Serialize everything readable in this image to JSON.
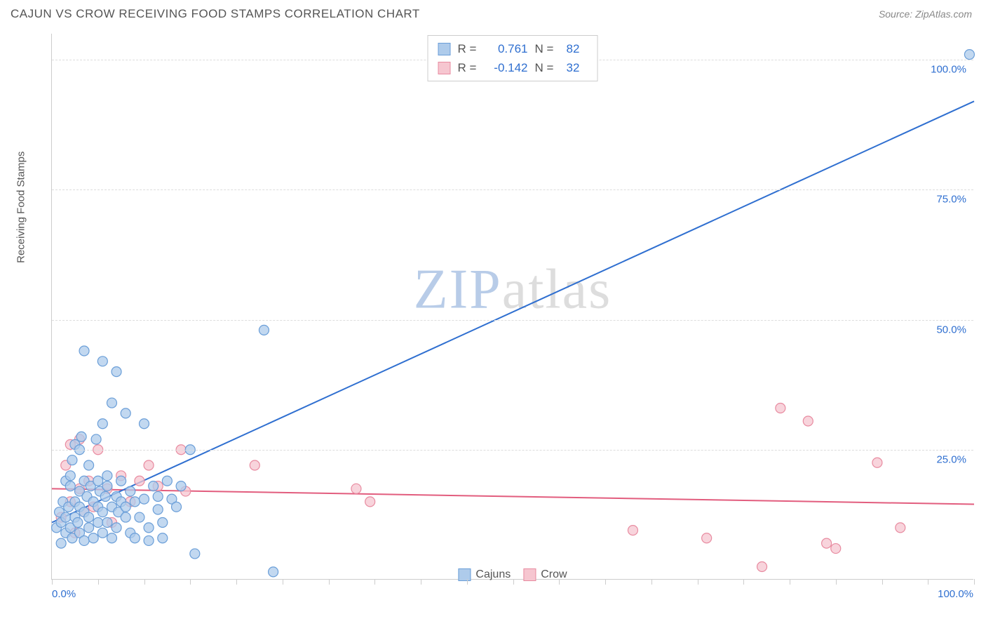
{
  "header": {
    "title": "CAJUN VS CROW RECEIVING FOOD STAMPS CORRELATION CHART",
    "source": "Source: ZipAtlas.com"
  },
  "watermark": {
    "part1": "ZIP",
    "part2": "atlas"
  },
  "chart": {
    "type": "scatter",
    "ylabel": "Receiving Food Stamps",
    "xlim": [
      0,
      100
    ],
    "ylim": [
      0,
      105
    ],
    "yticks": [
      {
        "v": 25,
        "label": "25.0%"
      },
      {
        "v": 50,
        "label": "50.0%"
      },
      {
        "v": 75,
        "label": "75.0%"
      },
      {
        "v": 100,
        "label": "100.0%"
      }
    ],
    "xtick_positions": [
      0,
      5,
      10,
      15,
      20,
      25,
      30,
      35,
      40,
      45,
      50,
      55,
      60,
      65,
      70,
      75,
      80,
      85,
      90,
      95,
      100
    ],
    "xtick_labels": {
      "left": "0.0%",
      "right": "100.0%"
    },
    "grid_color": "#dddddd",
    "axis_color": "#cccccc",
    "marker_radius": 7,
    "marker_stroke_width": 1.2,
    "line_width": 2,
    "series": [
      {
        "name": "Cajuns",
        "fill": "#aecbeb",
        "stroke": "#6a9ed8",
        "line_color": "#2f6fd0",
        "R": "0.761",
        "N": "82",
        "value_color": "#2f6fd0",
        "trend": {
          "x1": 0,
          "y1": 11,
          "x2": 100,
          "y2": 92
        },
        "points": [
          [
            0.5,
            10
          ],
          [
            0.8,
            13
          ],
          [
            1,
            11
          ],
          [
            1,
            7
          ],
          [
            1.2,
            15
          ],
          [
            1.5,
            12
          ],
          [
            1.5,
            19
          ],
          [
            1.5,
            9
          ],
          [
            1.8,
            14
          ],
          [
            2,
            10
          ],
          [
            2,
            18
          ],
          [
            2,
            20
          ],
          [
            2.2,
            8
          ],
          [
            2.2,
            23
          ],
          [
            2.5,
            12
          ],
          [
            2.5,
            26
          ],
          [
            2.5,
            15
          ],
          [
            2.8,
            11
          ],
          [
            3,
            14
          ],
          [
            3,
            17
          ],
          [
            3,
            9
          ],
          [
            3,
            25
          ],
          [
            3.2,
            27.5
          ],
          [
            3.5,
            13
          ],
          [
            3.5,
            19
          ],
          [
            3.5,
            7.5
          ],
          [
            3.5,
            44
          ],
          [
            3.8,
            16
          ],
          [
            4,
            12
          ],
          [
            4,
            10
          ],
          [
            4,
            22
          ],
          [
            4.2,
            18
          ],
          [
            4.5,
            15
          ],
          [
            4.5,
            8
          ],
          [
            4.8,
            27
          ],
          [
            5,
            14
          ],
          [
            5,
            19
          ],
          [
            5,
            11
          ],
          [
            5.2,
            17
          ],
          [
            5.5,
            13
          ],
          [
            5.5,
            9
          ],
          [
            5.5,
            30
          ],
          [
            5.5,
            42
          ],
          [
            5.8,
            16
          ],
          [
            6,
            18
          ],
          [
            6,
            20
          ],
          [
            6,
            11
          ],
          [
            6.5,
            14
          ],
          [
            6.5,
            8
          ],
          [
            6.5,
            34
          ],
          [
            7,
            16
          ],
          [
            7,
            10
          ],
          [
            7,
            40
          ],
          [
            7.2,
            13
          ],
          [
            7.5,
            15
          ],
          [
            7.5,
            19
          ],
          [
            8,
            32
          ],
          [
            8,
            12
          ],
          [
            8,
            14
          ],
          [
            8.5,
            17
          ],
          [
            8.5,
            9
          ],
          [
            9,
            15
          ],
          [
            9,
            8
          ],
          [
            9.5,
            12
          ],
          [
            10,
            15.5
          ],
          [
            10,
            30
          ],
          [
            10.5,
            10
          ],
          [
            10.5,
            7.5
          ],
          [
            11,
            18
          ],
          [
            11.5,
            13.5
          ],
          [
            11.5,
            16
          ],
          [
            12,
            8
          ],
          [
            12,
            11
          ],
          [
            12.5,
            19
          ],
          [
            13,
            15.5
          ],
          [
            13.5,
            14
          ],
          [
            14,
            18
          ],
          [
            15,
            25
          ],
          [
            15.5,
            5
          ],
          [
            23,
            48
          ],
          [
            24,
            1.5
          ],
          [
            99.5,
            101
          ]
        ]
      },
      {
        "name": "Crow",
        "fill": "#f6c6d0",
        "stroke": "#e88ba0",
        "line_color": "#e25d7e",
        "R": "-0.142",
        "N": "32",
        "value_color": "#2f6fd0",
        "trend": {
          "x1": 0,
          "y1": 17.5,
          "x2": 100,
          "y2": 14.5
        },
        "points": [
          [
            1,
            12
          ],
          [
            1.5,
            22
          ],
          [
            2,
            15
          ],
          [
            2,
            26
          ],
          [
            2.5,
            9
          ],
          [
            3,
            17.5
          ],
          [
            3,
            27
          ],
          [
            3.5,
            13
          ],
          [
            4,
            19
          ],
          [
            4.5,
            14
          ],
          [
            5,
            25
          ],
          [
            6,
            17.5
          ],
          [
            6.5,
            11
          ],
          [
            7.5,
            20
          ],
          [
            8.5,
            15
          ],
          [
            9.5,
            19
          ],
          [
            10.5,
            22
          ],
          [
            11.5,
            18
          ],
          [
            14,
            25
          ],
          [
            14.5,
            17
          ],
          [
            22,
            22
          ],
          [
            33,
            17.5
          ],
          [
            34.5,
            15
          ],
          [
            63,
            9.5
          ],
          [
            71,
            8
          ],
          [
            77,
            2.5
          ],
          [
            79,
            33
          ],
          [
            82,
            30.5
          ],
          [
            84,
            7
          ],
          [
            85,
            6
          ],
          [
            89.5,
            22.5
          ],
          [
            92,
            10
          ]
        ]
      }
    ]
  },
  "legend_bottom": [
    {
      "label": "Cajuns",
      "fill": "#aecbeb",
      "stroke": "#6a9ed8"
    },
    {
      "label": "Crow",
      "fill": "#f6c6d0",
      "stroke": "#e88ba0"
    }
  ]
}
